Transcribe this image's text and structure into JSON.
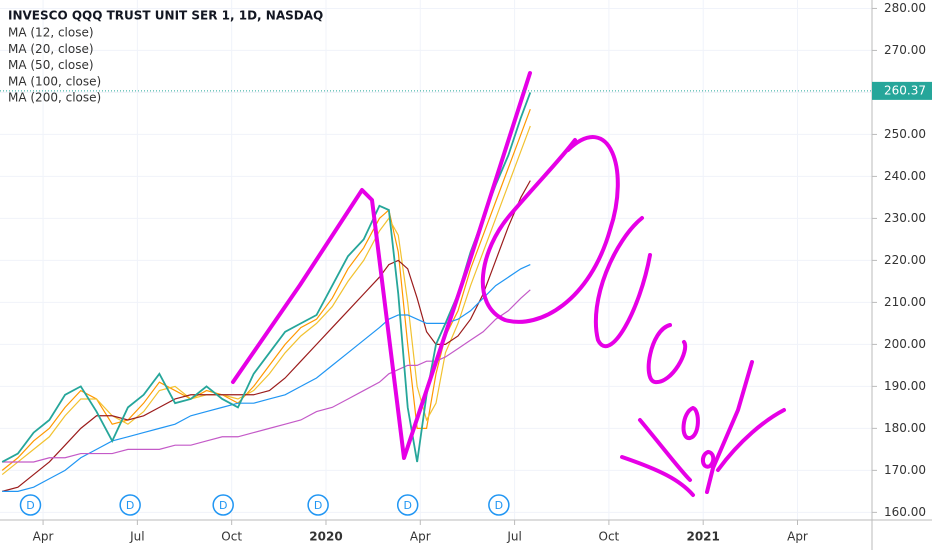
{
  "chart_data": {
    "type": "line",
    "title": "INVESCO QQQ TRUST UNIT SER 1, 1D, NASDAQ",
    "x": [
      1.7,
      2.2,
      2.7,
      3.2,
      3.7,
      4.2,
      4.7,
      5.2,
      5.7,
      6.2,
      6.7,
      7.2,
      7.7,
      8.2,
      8.7,
      9.2,
      9.7,
      10.2,
      10.7,
      11.2,
      11.7,
      12.2,
      12.7,
      13.2,
      13.7,
      14.0,
      14.3,
      14.6,
      14.9,
      15.2,
      15.5,
      15.8,
      16.2,
      16.6,
      17.0,
      17.4,
      17.8,
      18.2,
      18.5
    ],
    "price": {
      "color": "#26a69a",
      "values": [
        172,
        174,
        179,
        182,
        188,
        190,
        184,
        177,
        185,
        188,
        193,
        186,
        187,
        190,
        187,
        185,
        193,
        198,
        203,
        205,
        207,
        214,
        221,
        225,
        233,
        232,
        212,
        185,
        172,
        188,
        200,
        205,
        212,
        222,
        230,
        238,
        245,
        254,
        260
      ]
    },
    "series": [
      {
        "name": "MA (12, close)",
        "color": "#ff9800",
        "values": [
          170,
          173,
          177,
          180,
          185,
          189,
          187,
          181,
          182,
          186,
          191,
          189,
          187,
          189,
          188,
          186,
          190,
          195,
          200,
          204,
          206,
          211,
          218,
          223,
          230,
          232,
          222,
          200,
          180,
          180,
          193,
          202,
          208,
          218,
          226,
          234,
          242,
          250,
          256
        ]
      },
      {
        "name": "MA (20, close)",
        "color": "#f2c230",
        "values": [
          169,
          172,
          175,
          178,
          183,
          187,
          187,
          183,
          181,
          184,
          189,
          190,
          187,
          188,
          188,
          187,
          189,
          193,
          198,
          202,
          205,
          209,
          215,
          220,
          227,
          230,
          226,
          210,
          190,
          182,
          186,
          198,
          205,
          214,
          222,
          230,
          238,
          246,
          252
        ]
      },
      {
        "name": "MA (50, close)",
        "color": "#9b1c1c",
        "values": [
          165,
          166,
          169,
          172,
          176,
          180,
          183,
          183,
          182,
          183,
          185,
          187,
          188,
          188,
          188,
          188,
          188,
          189,
          192,
          196,
          200,
          204,
          208,
          212,
          216,
          219,
          220,
          218,
          211,
          203,
          200,
          200,
          202,
          206,
          212,
          220,
          228,
          235,
          239
        ]
      },
      {
        "name": "MA (100, close)",
        "color": "#2196f3",
        "values": [
          165,
          165,
          166,
          168,
          170,
          173,
          175,
          177,
          178,
          179,
          180,
          181,
          183,
          184,
          185,
          186,
          186,
          187,
          188,
          190,
          192,
          195,
          198,
          201,
          204,
          206,
          207,
          207,
          206,
          205,
          205,
          205,
          206,
          208,
          211,
          214,
          216,
          218,
          219
        ]
      },
      {
        "name": "MA (200, close)",
        "color": "#c45ac8",
        "values": [
          172,
          172,
          172,
          173,
          173,
          174,
          174,
          174,
          175,
          175,
          175,
          176,
          176,
          177,
          178,
          178,
          179,
          180,
          181,
          182,
          184,
          185,
          187,
          189,
          191,
          193,
          194,
          195,
          195,
          196,
          196,
          197,
          199,
          201,
          203,
          206,
          208,
          211,
          213
        ]
      }
    ],
    "last_price": 260.37,
    "dividends": {
      "label": "D",
      "x": [
        2.6,
        5.77,
        8.73,
        11.75,
        14.6,
        17.5
      ]
    },
    "xlim": [
      1.63,
      29.37
    ],
    "xticks": [
      {
        "value": 3,
        "label": "Apr"
      },
      {
        "value": 6,
        "label": "Jul"
      },
      {
        "value": 9,
        "label": "Oct"
      },
      {
        "value": 12,
        "label": "2020"
      },
      {
        "value": 15,
        "label": "Apr"
      },
      {
        "value": 18,
        "label": "Jul"
      },
      {
        "value": 21,
        "label": "Oct"
      },
      {
        "value": 24,
        "label": "2021"
      },
      {
        "value": 27,
        "label": "Apr"
      }
    ],
    "ylim": [
      158.18,
      282.01
    ],
    "yticks": [
      {
        "value": 160,
        "label": "160.00"
      },
      {
        "value": 170,
        "label": "170.00"
      },
      {
        "value": 180,
        "label": "180.00"
      },
      {
        "value": 190,
        "label": "190.00"
      },
      {
        "value": 200,
        "label": "200.00"
      },
      {
        "value": 210,
        "label": "210.00"
      },
      {
        "value": 220,
        "label": "220.00"
      },
      {
        "value": 230,
        "label": "230.00"
      },
      {
        "value": 240,
        "label": "240.00"
      },
      {
        "value": 250,
        "label": "250.00"
      },
      {
        "value": 260,
        "label": "260.00"
      },
      {
        "value": 270,
        "label": "270.00"
      },
      {
        "value": 280,
        "label": "280.00"
      }
    ],
    "grid": true
  }
}
